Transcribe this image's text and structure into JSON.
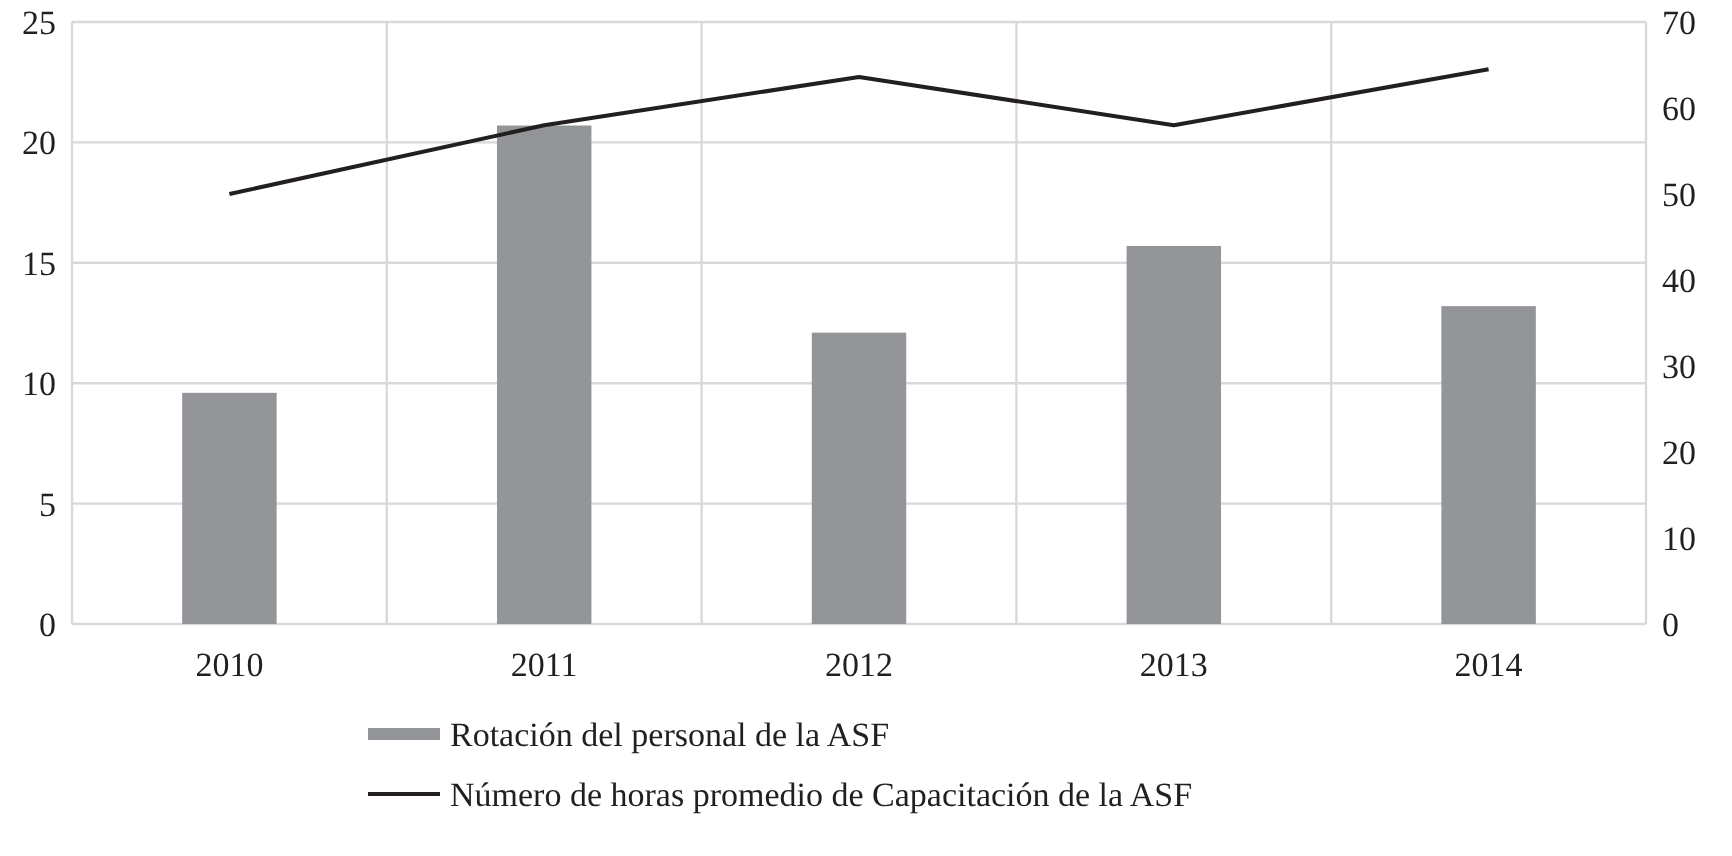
{
  "chart_data": {
    "type": "bar",
    "categories": [
      "2010",
      "2011",
      "2012",
      "2013",
      "2014"
    ],
    "series": [
      {
        "name": "Rotación del personal de la ASF",
        "color": "#939598",
        "values": [
          9.6,
          20.7,
          12.1,
          15.7,
          13.2
        ]
      },
      {
        "name": "Número de horas promedio de Capacitación de la ASF",
        "type": "line",
        "axis": "y2",
        "color": "#231f20",
        "values": [
          50,
          58,
          63.6,
          58,
          64.5
        ]
      }
    ],
    "ylim": [
      0,
      25
    ],
    "yticks": [
      0,
      5,
      10,
      15,
      20,
      25
    ],
    "y2lim": [
      0,
      70
    ],
    "y2ticks": [
      0,
      10,
      20,
      30,
      40,
      50,
      60,
      70
    ],
    "grid": true,
    "legend": "bottom",
    "marker": "none"
  }
}
